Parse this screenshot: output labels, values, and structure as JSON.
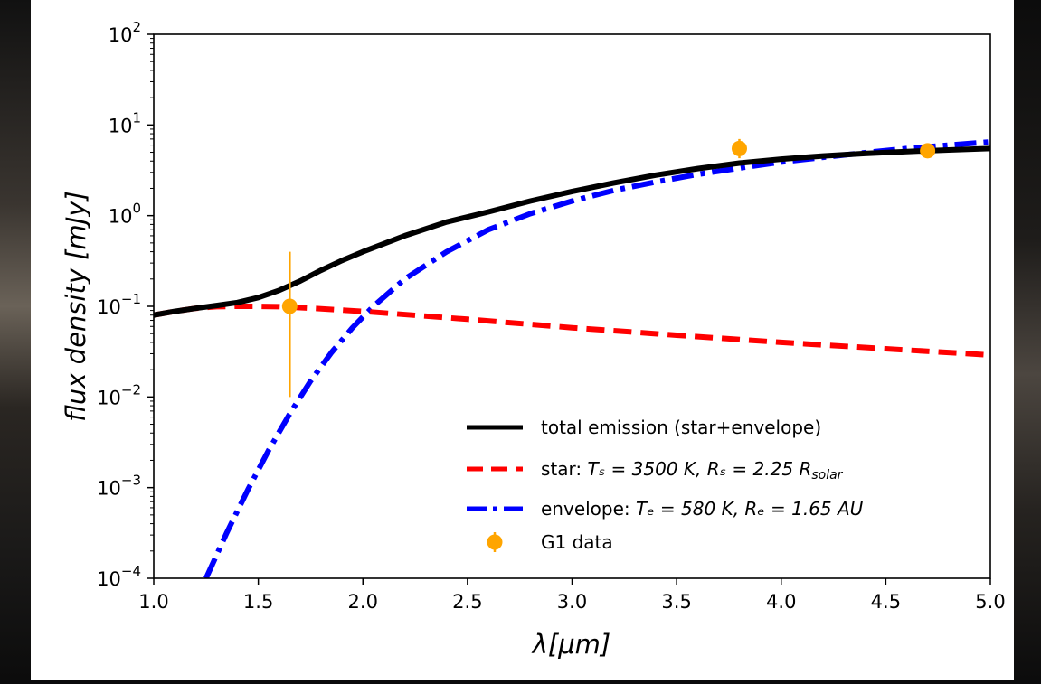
{
  "chart_data": {
    "type": "line",
    "xlabel": "λ[μm]",
    "ylabel": "flux density [mJy]",
    "xlim": [
      1.0,
      5.0
    ],
    "ylim": [
      0.0001,
      100
    ],
    "yscale": "log",
    "grid": false,
    "legend_position": "lower-right",
    "x_ticks": [
      "1.0",
      "1.5",
      "2.0",
      "2.5",
      "3.0",
      "3.5",
      "4.0",
      "4.5",
      "5.0"
    ],
    "y_ticks": [
      {
        "base": "10",
        "exp": "−4",
        "value": 0.0001
      },
      {
        "base": "10",
        "exp": "−3",
        "value": 0.001
      },
      {
        "base": "10",
        "exp": "−2",
        "value": 0.01
      },
      {
        "base": "10",
        "exp": "−1",
        "value": 0.1
      },
      {
        "base": "10",
        "exp": "0",
        "value": 1
      },
      {
        "base": "10",
        "exp": "1",
        "value": 10
      },
      {
        "base": "10",
        "exp": "2",
        "value": 100
      }
    ],
    "series": [
      {
        "name": "total emission (star+envelope)",
        "color": "#000000",
        "style": "solid",
        "x": [
          1.0,
          1.1,
          1.2,
          1.3,
          1.4,
          1.5,
          1.6,
          1.7,
          1.8,
          1.9,
          2.0,
          2.2,
          2.4,
          2.6,
          2.8,
          3.0,
          3.2,
          3.4,
          3.6,
          3.8,
          4.0,
          4.2,
          4.4,
          4.6,
          4.8,
          5.0
        ],
        "y": [
          0.08,
          0.088,
          0.095,
          0.102,
          0.11,
          0.125,
          0.15,
          0.19,
          0.25,
          0.32,
          0.4,
          0.6,
          0.85,
          1.1,
          1.45,
          1.85,
          2.3,
          2.8,
          3.3,
          3.8,
          4.2,
          4.55,
          4.85,
          5.1,
          5.3,
          5.5
        ]
      },
      {
        "name": "star",
        "legend_label": {
          "prefix": "star: ",
          "math": "Tₛ = 3500 K, Rₛ = 2.25 R",
          "sub": "solar"
        },
        "color": "#ff0000",
        "style": "dashed",
        "x": [
          1.0,
          1.1,
          1.2,
          1.3,
          1.4,
          1.5,
          1.6,
          1.8,
          2.0,
          2.5,
          3.0,
          3.5,
          4.0,
          4.5,
          5.0
        ],
        "y": [
          0.08,
          0.088,
          0.095,
          0.099,
          0.1,
          0.1,
          0.099,
          0.094,
          0.088,
          0.072,
          0.058,
          0.048,
          0.04,
          0.034,
          0.029
        ]
      },
      {
        "name": "envelope",
        "legend_label": {
          "prefix": "envelope: ",
          "math": "Tₑ = 580 K, Rₑ = 1.65 AU"
        },
        "color": "#0000ff",
        "style": "dashdot",
        "x": [
          1.25,
          1.35,
          1.45,
          1.55,
          1.65,
          1.75,
          1.85,
          1.95,
          2.05,
          2.2,
          2.4,
          2.6,
          2.8,
          3.0,
          3.2,
          3.4,
          3.6,
          3.8,
          4.0,
          4.2,
          4.4,
          4.6,
          4.8,
          5.0
        ],
        "y": [
          0.0001,
          0.00032,
          0.00095,
          0.0026,
          0.0065,
          0.015,
          0.031,
          0.058,
          0.1,
          0.2,
          0.4,
          0.7,
          1.05,
          1.45,
          1.9,
          2.35,
          2.85,
          3.35,
          3.9,
          4.4,
          4.95,
          5.5,
          6.0,
          6.5
        ]
      }
    ],
    "data_points": {
      "name": "G1 data",
      "color": "#ffa500",
      "points": [
        {
          "x": 1.65,
          "y": 0.1,
          "y_low": 0.01,
          "y_high": 0.4
        },
        {
          "x": 3.8,
          "y": 5.5,
          "y_low": 4.3,
          "y_high": 7.0
        },
        {
          "x": 4.7,
          "y": 5.2,
          "y_low": 4.8,
          "y_high": 5.6
        }
      ]
    }
  }
}
